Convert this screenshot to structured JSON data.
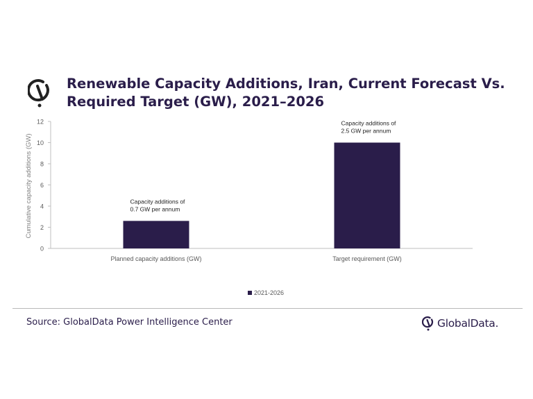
{
  "title": "Renewable Capacity Additions, Iran, Current Forecast Vs. Required Target (GW), 2021–2026",
  "source": "Source: GlobalData Power Intelligence Center",
  "brand": "GlobalData.",
  "colors": {
    "bar": "#2a1d4a",
    "axis": "#bfbfbf",
    "text": "#595959",
    "title": "#2a1d4a"
  },
  "chart_data": {
    "type": "bar",
    "categories": [
      "Planned capacity additions (GW)",
      "Target requirement (GW)"
    ],
    "series": [
      {
        "name": "2021-2026",
        "values": [
          2.6,
          10
        ]
      }
    ],
    "ylabel": "Cumulative capacity additions (GW)",
    "xlabel": "",
    "ylim": [
      0,
      12
    ],
    "yticks": [
      0,
      2,
      4,
      6,
      8,
      10,
      12
    ],
    "grid": false,
    "legend": "bottom-center",
    "annotations": [
      {
        "category": "Planned capacity additions (GW)",
        "lines": [
          "Capacity additions of",
          "0.7 GW per annum"
        ]
      },
      {
        "category": "Target requirement (GW)",
        "lines": [
          "Capacity additions of",
          "2.5 GW per annum"
        ]
      }
    ]
  }
}
